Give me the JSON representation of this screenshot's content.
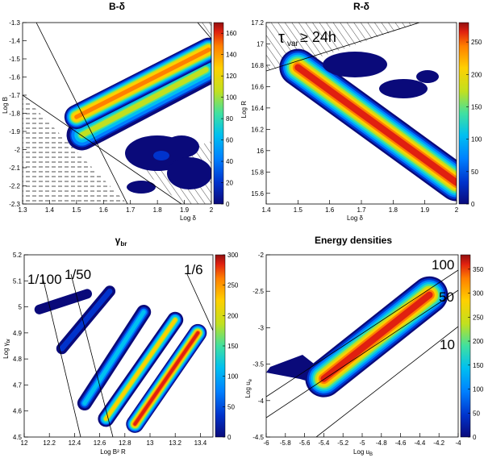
{
  "colors": {
    "colormap": [
      "#0a0a7a",
      "#0033cc",
      "#0080ff",
      "#00c0f0",
      "#40e0a0",
      "#c0e020",
      "#ffd000",
      "#ff8000",
      "#e02010",
      "#901010"
    ],
    "frame": "#000000",
    "hatch": "#000000"
  },
  "chart_data": [
    {
      "type": "heatmap",
      "title": "B-δ",
      "xlabel": "Log δ",
      "ylabel": "Log B",
      "xlim": [
        1.3,
        2.0
      ],
      "ylim": [
        -2.3,
        -1.3
      ],
      "xticks": [
        "1.3",
        "1.4",
        "1.5",
        "1.6",
        "1.7",
        "1.8",
        "1.9",
        "2"
      ],
      "yticks": [
        "-2.3",
        "-2.2",
        "-2.1",
        "-2",
        "-1.9",
        "-1.8",
        "-1.7",
        "-1.6",
        "-1.5",
        "-1.4",
        "-1.3"
      ],
      "zlim": [
        0,
        170
      ],
      "zticks": [
        "0",
        "20",
        "40",
        "60",
        "80",
        "100",
        "120",
        "140",
        "160"
      ],
      "bands": [
        {
          "x": [
            1.5,
            1.99
          ],
          "y": [
            -1.82,
            -1.45
          ],
          "peak": 150
        },
        {
          "x": [
            1.52,
            1.98
          ],
          "y": [
            -1.92,
            -1.56
          ],
          "peak": 95
        }
      ],
      "annotations": []
    },
    {
      "type": "heatmap",
      "title": "R-δ",
      "xlabel": "Log δ",
      "ylabel": "Log R",
      "xlim": [
        1.4,
        2.0
      ],
      "ylim": [
        15.5,
        17.2
      ],
      "xticks": [
        "1.4",
        "1.5",
        "1.6",
        "1.7",
        "1.8",
        "1.9",
        "2"
      ],
      "yticks": [
        "15.6",
        "15.8",
        "16",
        "16.2",
        "16.4",
        "16.6",
        "16.8",
        "17",
        "17.2"
      ],
      "zlim": [
        0,
        280
      ],
      "zticks": [
        "0",
        "50",
        "100",
        "150",
        "200",
        "250"
      ],
      "bands": [
        {
          "x": [
            1.5,
            2.0
          ],
          "y": [
            16.78,
            15.7
          ],
          "peak": 270
        }
      ],
      "annotations": [
        "τ",
        "var",
        "≥ 24h"
      ]
    },
    {
      "type": "heatmap",
      "title": "γ",
      "title_sub": "br",
      "xlabel": "Log B² R",
      "ylabel": "Log γ",
      "ylabel_sub": "br",
      "xlim": [
        12.0,
        13.5
      ],
      "ylim": [
        4.5,
        5.2
      ],
      "xticks": [
        "12",
        "12.2",
        "12.4",
        "12.6",
        "12.8",
        "13",
        "13.2",
        "13.4"
      ],
      "yticks": [
        "4.5",
        "4.6",
        "4.7",
        "4.8",
        "4.9",
        "5",
        "5.1",
        "5.2"
      ],
      "zlim": [
        0,
        300
      ],
      "zticks": [
        "0",
        "50",
        "100",
        "150",
        "200",
        "250",
        "300"
      ],
      "bands": [
        {
          "x": [
            12.12,
            12.5
          ],
          "y": [
            4.99,
            5.05
          ],
          "peak": 20
        },
        {
          "x": [
            12.3,
            12.68
          ],
          "y": [
            4.84,
            5.06
          ],
          "peak": 45
        },
        {
          "x": [
            12.48,
            12.95
          ],
          "y": [
            4.63,
            4.98
          ],
          "peak": 110
        },
        {
          "x": [
            12.65,
            13.2
          ],
          "y": [
            4.57,
            4.95
          ],
          "peak": 200
        },
        {
          "x": [
            12.88,
            13.38
          ],
          "y": [
            4.55,
            4.9
          ],
          "peak": 290
        }
      ],
      "annotations": [
        "1/100",
        "1/50",
        "1/6"
      ]
    },
    {
      "type": "heatmap",
      "title": "Energy densities",
      "xlabel": "Log u",
      "xlabel_sub": "B",
      "ylabel": "Log u",
      "ylabel_sub": "e",
      "xlim": [
        -6.0,
        -4.0
      ],
      "ylim": [
        -4.5,
        -2.0
      ],
      "xticks": [
        "-6",
        "-5.8",
        "-5.6",
        "-5.4",
        "-5.2",
        "-5",
        "-4.8",
        "-4.6",
        "-4.4",
        "-4.2",
        "-4"
      ],
      "yticks": [
        "-4.5",
        "-4",
        "-3.5",
        "-3",
        "-2.5",
        "-2"
      ],
      "zlim": [
        0,
        380
      ],
      "zticks": [
        "0",
        "50",
        "100",
        "150",
        "200",
        "250",
        "300",
        "350"
      ],
      "bands": [
        {
          "x": [
            -5.4,
            -4.3
          ],
          "y": [
            -3.7,
            -2.55
          ],
          "peak": 370
        }
      ],
      "annotations": [
        "100",
        "50",
        "10"
      ]
    }
  ]
}
